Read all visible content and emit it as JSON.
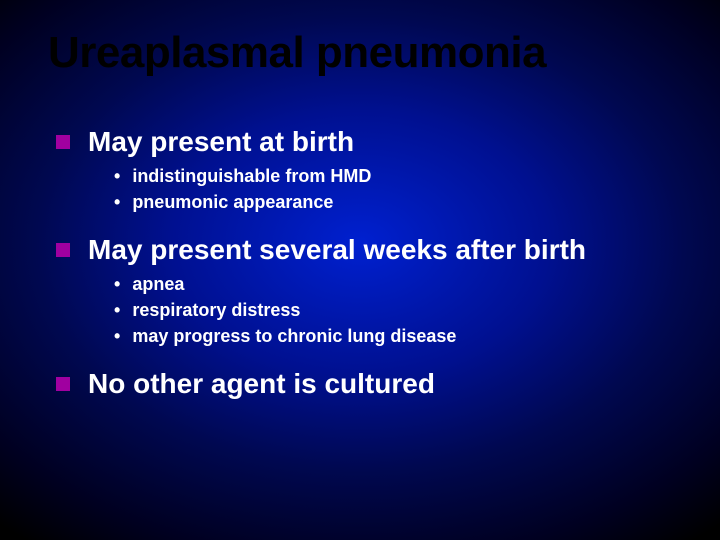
{
  "slide": {
    "title": "Ureaplasmal pneumonia",
    "title_color": "#000000",
    "title_fontsize": 44,
    "background": {
      "type": "radial-gradient",
      "center_color": "#0020d0",
      "mid_color": "#000850",
      "edge_color": "#000000"
    },
    "bullet_square_color": "#a000a0",
    "text_color": "#ffffff",
    "level1_fontsize": 28,
    "level2_fontsize": 18,
    "points": [
      {
        "text": "May present at birth",
        "sub": [
          "indistinguishable from HMD",
          "pneumonic appearance"
        ]
      },
      {
        "text": "May present several weeks after birth",
        "sub": [
          "apnea",
          "respiratory distress",
          "may progress to chronic lung disease"
        ]
      },
      {
        "text": "No other agent is cultured",
        "sub": []
      }
    ]
  }
}
